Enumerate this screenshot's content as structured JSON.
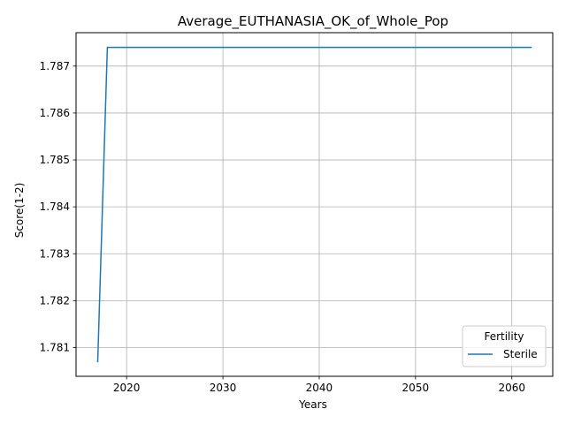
{
  "chart_data": {
    "type": "line",
    "title": "Average_EUTHANASIA_OK_of_Whole_Pop",
    "xlabel": "Years",
    "ylabel": "Score(1-2)",
    "xlim": [
      2014.75,
      2064.25
    ],
    "ylim": [
      1.780388,
      1.787712
    ],
    "x_ticks": [
      2020,
      2030,
      2040,
      2050,
      2060
    ],
    "x_tick_labels": [
      "2020",
      "2030",
      "2040",
      "2050",
      "2060"
    ],
    "y_ticks": [
      1.781,
      1.782,
      1.783,
      1.784,
      1.785,
      1.786,
      1.787
    ],
    "y_tick_labels": [
      "1.781",
      "1.782",
      "1.783",
      "1.784",
      "1.785",
      "1.786",
      "1.787"
    ],
    "grid": true,
    "legend": {
      "title": "Fertility",
      "position": "lower-right"
    },
    "series": [
      {
        "name": "Sterile",
        "color": "#1f77b4",
        "x": [
          2017,
          2018,
          2019,
          2020,
          2021,
          2022,
          2023,
          2024,
          2025,
          2026,
          2027,
          2028,
          2029,
          2030,
          2031,
          2032,
          2033,
          2034,
          2035,
          2036,
          2037,
          2038,
          2039,
          2040,
          2041,
          2042,
          2043,
          2044,
          2045,
          2046,
          2047,
          2048,
          2049,
          2050,
          2051,
          2052,
          2053,
          2054,
          2055,
          2056,
          2057,
          2058,
          2059,
          2060,
          2061,
          2062
        ],
        "y": [
          1.7807,
          1.7874,
          1.7874,
          1.7874,
          1.7874,
          1.7874,
          1.7874,
          1.7874,
          1.7874,
          1.7874,
          1.7874,
          1.7874,
          1.7874,
          1.7874,
          1.7874,
          1.7874,
          1.7874,
          1.7874,
          1.7874,
          1.7874,
          1.7874,
          1.7874,
          1.7874,
          1.7874,
          1.7874,
          1.7874,
          1.7874,
          1.7874,
          1.7874,
          1.7874,
          1.7874,
          1.7874,
          1.7874,
          1.7874,
          1.7874,
          1.7874,
          1.7874,
          1.7874,
          1.7874,
          1.7874,
          1.7874,
          1.7874,
          1.7874,
          1.7874,
          1.7874,
          1.7874
        ]
      }
    ]
  }
}
